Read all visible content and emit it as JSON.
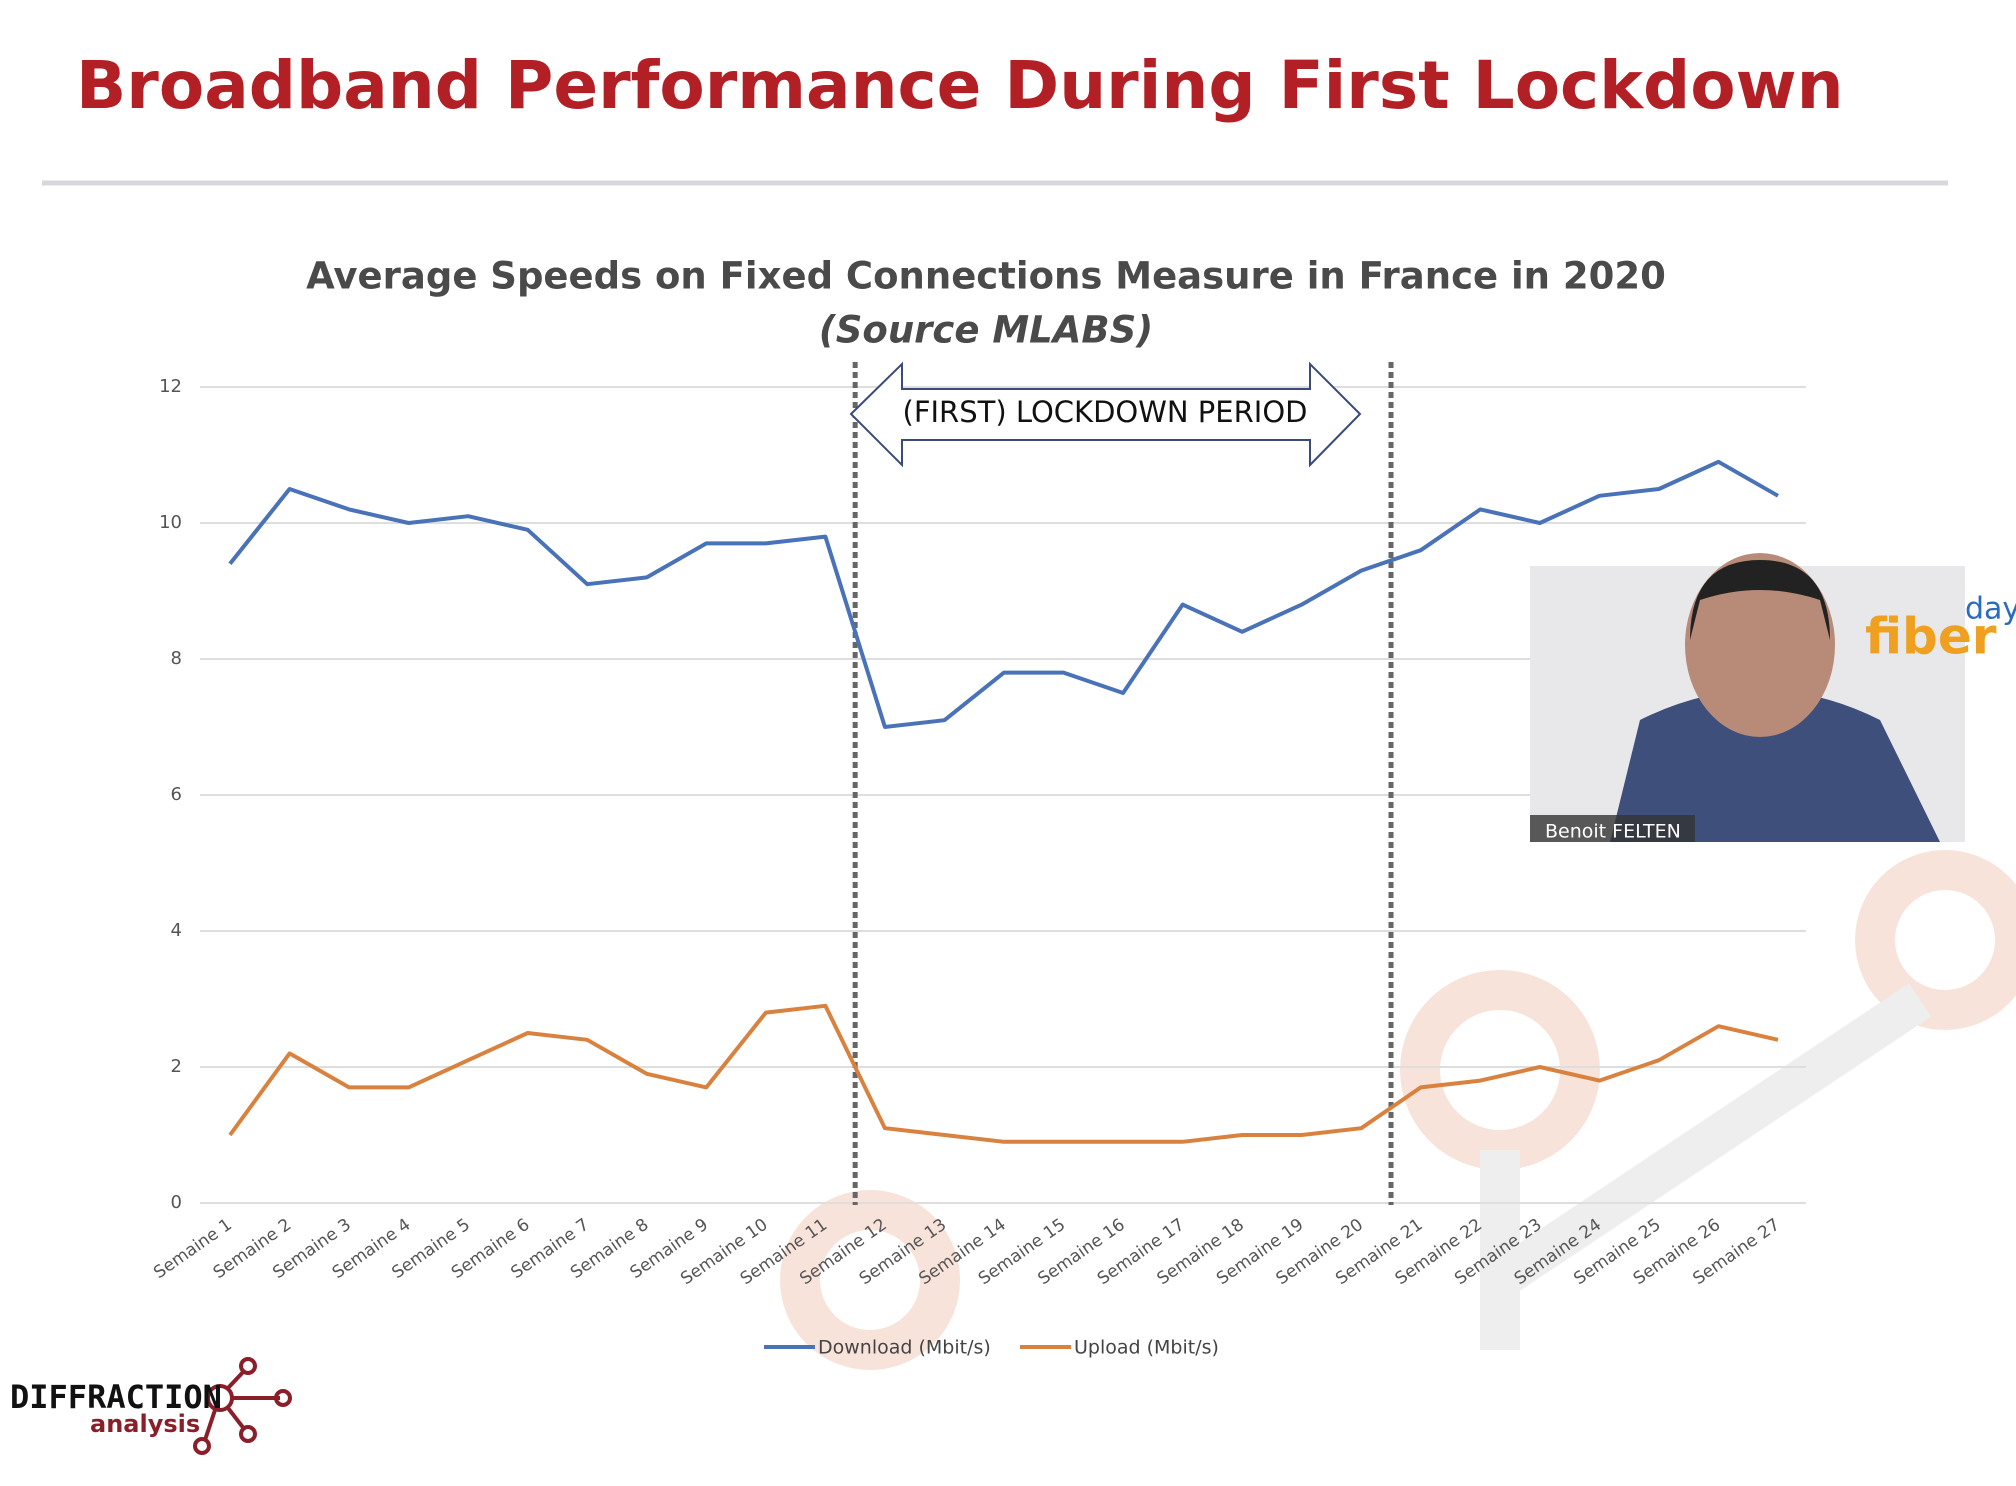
{
  "slide_title": "Broadband Performance During First Lockdown",
  "speaker_name": "Benoit FELTEN",
  "event_logo": {
    "word": "fiber",
    "superscript": "day"
  },
  "company_logo": {
    "name": "DIFFRACTION",
    "tagline": "analysis"
  },
  "chart_data": {
    "type": "line",
    "title": "Average Speeds on Fixed Connections Measure in France in 2020",
    "subtitle": "(Source MLABS)",
    "annotation": "(FIRST) LOCKDOWN PERIOD",
    "categories": [
      "Semaine 1",
      "Semaine 2",
      "Semaine 3",
      "Semaine 4",
      "Semaine 5",
      "Semaine 6",
      "Semaine 7",
      "Semaine 8",
      "Semaine 9",
      "Semaine 10",
      "Semaine 11",
      "Semaine 12",
      "Semaine 13",
      "Semaine 14",
      "Semaine 15",
      "Semaine 16",
      "Semaine 17",
      "Semaine 18",
      "Semaine 19",
      "Semaine 20",
      "Semaine 21",
      "Semaine 22",
      "Semaine 23",
      "Semaine 24",
      "Semaine 25",
      "Semaine 26",
      "Semaine 27"
    ],
    "series": [
      {
        "name": "Download (Mbit/s)",
        "color": "#4a72b8",
        "values": [
          9.4,
          10.5,
          10.2,
          10.0,
          10.1,
          9.9,
          9.1,
          9.2,
          9.7,
          9.7,
          9.8,
          7.0,
          7.1,
          7.8,
          7.8,
          7.5,
          8.8,
          8.4,
          8.8,
          9.3,
          9.6,
          10.2,
          10.0,
          10.4,
          10.5,
          10.9,
          10.4
        ]
      },
      {
        "name": "Upload (Mbit/s)",
        "color": "#d9823f",
        "values": [
          1.0,
          2.2,
          1.7,
          1.7,
          2.1,
          2.5,
          2.4,
          1.9,
          1.7,
          2.8,
          2.9,
          1.1,
          1.0,
          0.9,
          0.9,
          0.9,
          0.9,
          1.0,
          1.0,
          1.1,
          1.7,
          1.8,
          2.0,
          1.8,
          2.1,
          2.6,
          2.4
        ]
      }
    ],
    "ylim": [
      0,
      12
    ],
    "yticks": [
      0,
      2,
      4,
      6,
      8,
      10,
      12
    ],
    "grid": true
  }
}
